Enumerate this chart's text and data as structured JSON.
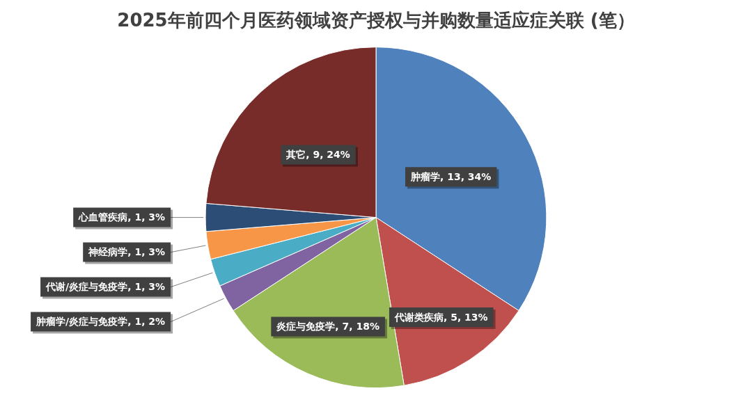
{
  "chart_data": {
    "type": "pie",
    "title": "2025年前四个月医药领域资产授权与并购数量适应症关联 (笔）",
    "categories": [
      "肿瘤学",
      "代谢类疾病",
      "炎症与免疫学",
      "肿瘤学/炎症与免疫学",
      "代谢/炎症与免疫学",
      "神经病学",
      "心血管疾病",
      "其它"
    ],
    "values": [
      13,
      5,
      7,
      1,
      1,
      1,
      1,
      9
    ],
    "colors": [
      "#4f81bd",
      "#c0504d",
      "#9bbb59",
      "#8064a2",
      "#4bacc6",
      "#f79646",
      "#2c4d75",
      "#772c2a"
    ],
    "value_labels": [
      ", 13, 34%",
      ", 5, 13%",
      ", 7, 18%",
      ", 1, 2%",
      ", 1, 3%",
      ", 1, 3%",
      ", 1, 3%",
      ", 9, 24%"
    ],
    "legend": false
  }
}
